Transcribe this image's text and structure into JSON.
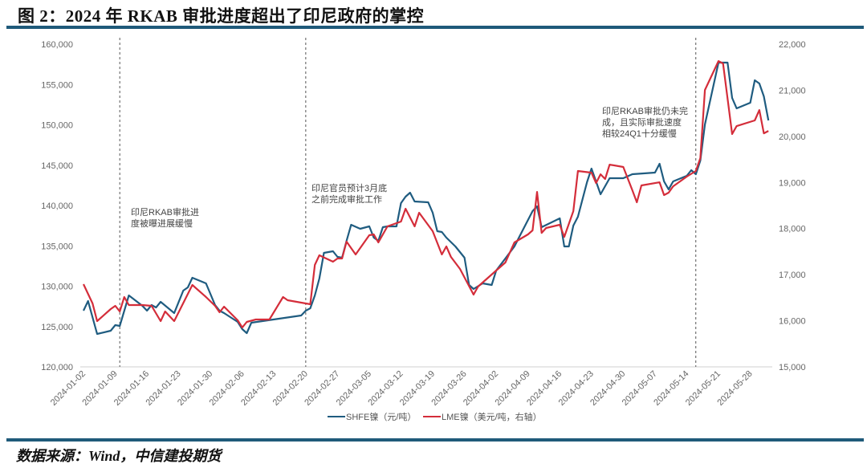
{
  "title": "图 2：2024 年 RKAB 审批进度超出了印尼政府的掌控",
  "source": "数据来源：Wind，中信建投期货",
  "colors": {
    "shfe": "#1f5c80",
    "lme": "#d42d3a",
    "rule": "#1f5a7a"
  },
  "chart_data": {
    "type": "line",
    "title": "图 2：2024 年 RKAB 审批进度超出了印尼政府的掌控",
    "x_origin": "2024-01-02",
    "x_unit": "days since 2024-01-02",
    "x_range": [
      0,
      151
    ],
    "x_tick_labels": [
      "2024-01-02",
      "2024-01-09",
      "2024-01-16",
      "2024-01-23",
      "2024-01-30",
      "2024-02-06",
      "2024-02-13",
      "2024-02-20",
      "2024-02-27",
      "2024-03-05",
      "2024-03-12",
      "2024-03-19",
      "2024-03-26",
      "2024-04-02",
      "2024-04-09",
      "2024-04-16",
      "2024-04-23",
      "2024-04-30",
      "2024-05-07",
      "2024-05-14",
      "2024-05-21",
      "2024-05-28"
    ],
    "y_left": {
      "range": [
        120000,
        160000
      ],
      "ticks": [
        "120,000",
        "125,000",
        "130,000",
        "135,000",
        "140,000",
        "145,000",
        "150,000",
        "155,000",
        "160,000"
      ]
    },
    "y_right": {
      "range": [
        15000,
        22000
      ],
      "ticks": [
        "15,000",
        "16,000",
        "17,000",
        "18,000",
        "19,000",
        "20,000",
        "21,000",
        "22,000"
      ]
    },
    "grid": false,
    "legend_position": "bottom",
    "series": [
      {
        "name": "SHFE镍（元/吨）",
        "axis": "left",
        "color": "#1f5c80",
        "points": [
          [
            0,
            126970
          ],
          [
            1,
            128160
          ],
          [
            3,
            124080
          ],
          [
            6,
            124480
          ],
          [
            7,
            125170
          ],
          [
            8,
            125070
          ],
          [
            10,
            128860
          ],
          [
            13,
            127560
          ],
          [
            14,
            126970
          ],
          [
            15,
            127660
          ],
          [
            16,
            127360
          ],
          [
            17,
            128060
          ],
          [
            20,
            126670
          ],
          [
            22,
            129450
          ],
          [
            23,
            129850
          ],
          [
            24,
            131040
          ],
          [
            27,
            130350
          ],
          [
            29,
            127660
          ],
          [
            30,
            126970
          ],
          [
            31,
            126670
          ],
          [
            34,
            125570
          ],
          [
            35,
            124680
          ],
          [
            36,
            124180
          ],
          [
            37,
            125470
          ],
          [
            48,
            126370
          ],
          [
            49,
            126970
          ],
          [
            50,
            127260
          ],
          [
            51,
            128860
          ],
          [
            52,
            130950
          ],
          [
            53,
            134130
          ],
          [
            54,
            134230
          ],
          [
            55,
            134330
          ],
          [
            56,
            133630
          ],
          [
            57,
            133530
          ],
          [
            58,
            135620
          ],
          [
            59,
            137610
          ],
          [
            61,
            137110
          ],
          [
            63,
            137410
          ],
          [
            64,
            136020
          ],
          [
            65,
            135620
          ],
          [
            66,
            137310
          ],
          [
            67,
            137410
          ],
          [
            69,
            137410
          ],
          [
            70,
            140300
          ],
          [
            71,
            141090
          ],
          [
            72,
            141590
          ],
          [
            73,
            140500
          ],
          [
            76,
            140400
          ],
          [
            77,
            139100
          ],
          [
            78,
            136820
          ],
          [
            79,
            136720
          ],
          [
            80,
            136020
          ],
          [
            82,
            134930
          ],
          [
            84,
            133530
          ],
          [
            85,
            130150
          ],
          [
            86,
            129650
          ],
          [
            88,
            130350
          ],
          [
            90,
            130150
          ],
          [
            91,
            131940
          ],
          [
            93,
            133430
          ],
          [
            95,
            134930
          ],
          [
            96,
            136020
          ],
          [
            99,
            139300
          ],
          [
            100,
            139900
          ],
          [
            101,
            137310
          ],
          [
            105,
            138410
          ],
          [
            106,
            134930
          ],
          [
            107,
            134930
          ],
          [
            108,
            137510
          ],
          [
            109,
            138610
          ],
          [
            111,
            142890
          ],
          [
            112,
            144580
          ],
          [
            114,
            141390
          ],
          [
            116,
            143380
          ],
          [
            119,
            143380
          ],
          [
            121,
            143880
          ],
          [
            126,
            144080
          ],
          [
            127,
            145170
          ],
          [
            128,
            142990
          ],
          [
            129,
            142000
          ],
          [
            130,
            142990
          ],
          [
            133,
            143680
          ],
          [
            134,
            144380
          ],
          [
            135,
            143880
          ],
          [
            136,
            145570
          ],
          [
            137,
            150050
          ],
          [
            140,
            157710
          ],
          [
            142,
            157710
          ],
          [
            143,
            153330
          ],
          [
            144,
            152040
          ],
          [
            147,
            152740
          ],
          [
            148,
            155520
          ],
          [
            149,
            155120
          ],
          [
            150,
            153530
          ],
          [
            151,
            150550
          ]
        ]
      },
      {
        "name": "LME镍（美元/吨，右轴）",
        "axis": "right",
        "color": "#d42d3a",
        "points": [
          [
            0,
            16793
          ],
          [
            2,
            16375
          ],
          [
            3,
            15992
          ],
          [
            6,
            16254
          ],
          [
            7,
            16323
          ],
          [
            8,
            16201
          ],
          [
            9,
            16515
          ],
          [
            10,
            16341
          ],
          [
            13,
            16341
          ],
          [
            15,
            16323
          ],
          [
            17,
            15992
          ],
          [
            18,
            16201
          ],
          [
            20,
            15992
          ],
          [
            24,
            16776
          ],
          [
            27,
            16515
          ],
          [
            29,
            16323
          ],
          [
            30,
            16184
          ],
          [
            31,
            16306
          ],
          [
            34,
            16010
          ],
          [
            35,
            15853
          ],
          [
            36,
            15975
          ],
          [
            38,
            16027
          ],
          [
            41,
            16027
          ],
          [
            44,
            16515
          ],
          [
            45,
            16445
          ],
          [
            49,
            16375
          ],
          [
            50,
            16358
          ],
          [
            51,
            17211
          ],
          [
            52,
            17420
          ],
          [
            55,
            17281
          ],
          [
            56,
            17350
          ],
          [
            57,
            17350
          ],
          [
            58,
            17716
          ],
          [
            60,
            17437
          ],
          [
            63,
            17855
          ],
          [
            64,
            17873
          ],
          [
            65,
            17699
          ],
          [
            67,
            18047
          ],
          [
            70,
            18151
          ],
          [
            71,
            18430
          ],
          [
            73,
            18047
          ],
          [
            74,
            18343
          ],
          [
            77,
            17942
          ],
          [
            79,
            17437
          ],
          [
            80,
            17612
          ],
          [
            81,
            17385
          ],
          [
            83,
            17124
          ],
          [
            86,
            16567
          ],
          [
            87,
            16741
          ],
          [
            91,
            17089
          ],
          [
            93,
            17263
          ],
          [
            95,
            17699
          ],
          [
            98,
            17873
          ],
          [
            99,
            17960
          ],
          [
            100,
            18795
          ],
          [
            101,
            17907
          ],
          [
            102,
            18012
          ],
          [
            105,
            18082
          ],
          [
            106,
            17820
          ],
          [
            108,
            18378
          ],
          [
            109,
            19248
          ],
          [
            112,
            19213
          ],
          [
            113,
            18987
          ],
          [
            114,
            19178
          ],
          [
            115,
            19074
          ],
          [
            116,
            19387
          ],
          [
            119,
            19335
          ],
          [
            121,
            18830
          ],
          [
            122,
            18569
          ],
          [
            123,
            18935
          ],
          [
            127,
            19004
          ],
          [
            128,
            18726
          ],
          [
            129,
            18778
          ],
          [
            130,
            18917
          ],
          [
            133,
            19126
          ],
          [
            135,
            19248
          ],
          [
            136,
            19527
          ],
          [
            137,
            21006
          ],
          [
            140,
            21633
          ],
          [
            141,
            21581
          ],
          [
            143,
            20049
          ],
          [
            144,
            20223
          ],
          [
            148,
            20345
          ],
          [
            149,
            20571
          ],
          [
            150,
            20066
          ],
          [
            151,
            20118
          ]
        ]
      }
    ],
    "event_lines": [
      8,
      49,
      135
    ],
    "annotations": [
      {
        "at": 8,
        "lines": [
          "印尼RKAB审批进",
          "度被曝进展缓慢"
        ]
      },
      {
        "at": 49,
        "lines": [
          "印尼官员预计3月底",
          "之前完成审批工作"
        ]
      },
      {
        "at": 135,
        "lines": [
          "印尼RKAB审批仍未完",
          "成，且实际审批速度",
          "相较24Q1十分缓慢"
        ]
      }
    ]
  }
}
